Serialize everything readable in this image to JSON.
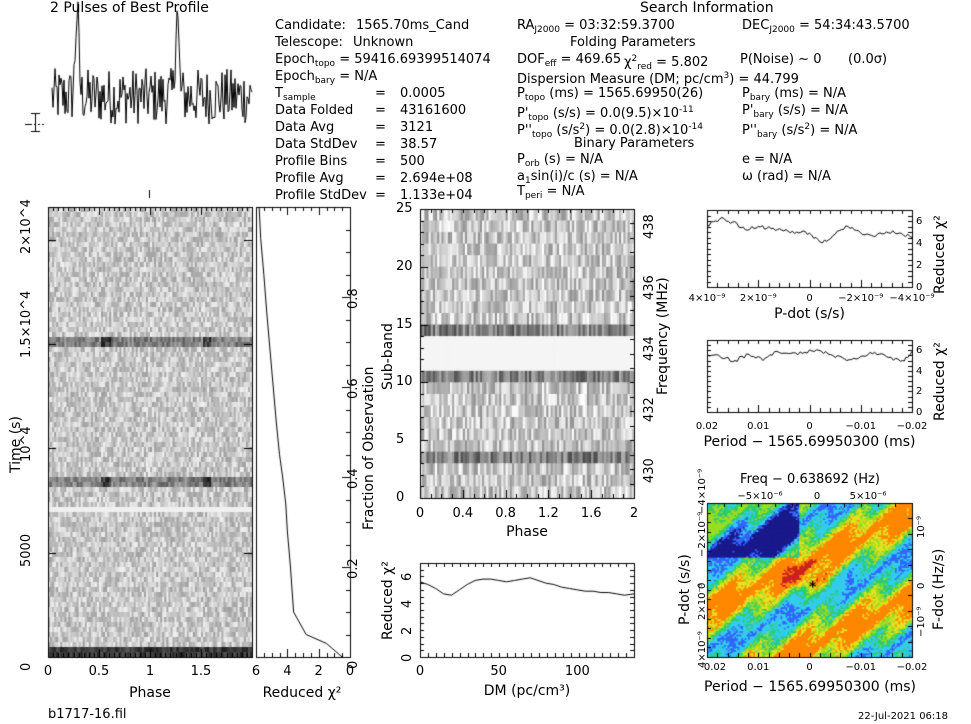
{
  "header": {
    "pulse_title": "2 Pulses of Best Profile",
    "search_title": "Search Information",
    "folding_title": "Folding Parameters",
    "binary_title": "Binary Parameters"
  },
  "candidate": {
    "candidate_label": "Candidate:",
    "candidate_value": "1565.70ms_Cand",
    "telescope_label": "Telescope:",
    "telescope_value": "Unknown",
    "epoch_topo": "Epoch",
    "epoch_topo_sub": "topo",
    "epoch_topo_value": "= 59416.69399514074",
    "epoch_bary": "Epoch",
    "epoch_bary_sub": "bary",
    "epoch_bary_value": "= N/A",
    "rows": [
      {
        "label": "T",
        "sub": "sample",
        "value": "0.0005"
      },
      {
        "label": "Data Folded",
        "sub": "",
        "value": "43161600"
      },
      {
        "label": "Data Avg",
        "sub": "",
        "value": "3121"
      },
      {
        "label": "Data StdDev",
        "sub": "",
        "value": "38.57"
      },
      {
        "label": "Profile Bins",
        "sub": "",
        "value": "500"
      },
      {
        "label": "Profile Avg",
        "sub": "",
        "value": "2.694e+08"
      },
      {
        "label": "Profile StdDev",
        "sub": "",
        "value": "1.133e+04"
      }
    ],
    "equals": "="
  },
  "search": {
    "ra_label": "RA",
    "ra_sub": "J2000",
    "ra_value": "= 03:32:59.3700",
    "dec_label": "DEC",
    "dec_sub": "J2000",
    "dec_value": "= 54:34:43.5700",
    "dof_label": "DOF",
    "dof_sub": "eff",
    "dof_value": "= 469.65",
    "chi_label": "χ",
    "chi_sup": "2",
    "chi_sub": "red",
    "chi_value": "= 5.802",
    "pnoise": "P(Noise) ~ 0",
    "sigma": "(0.0σ)",
    "dm_line": "Dispersion Measure (DM; pc/cm",
    "dm_sup": "3",
    "dm_tail": ") = 44.799",
    "ptopo_label": "P",
    "ptopo_sub": "topo",
    "ptopo_value": "(ms) = 1565.69950(26)",
    "pbary_label": "P",
    "pbary_sub": "bary",
    "pbary_value": "(ms) = N/A",
    "pdtopo_label": "P'",
    "pdtopo_sub": "topo",
    "pdtopo_value": "(s/s) = 0.0(9.5)×10",
    "pdtopo_exp": "-11",
    "pdbary_label": "P'",
    "pdbary_sub": "bary",
    "pdbary_value": "(s/s) = N/A",
    "pddtopo_label": "P''",
    "pddtopo_sub": "topo",
    "pddtopo_value": "(s/s",
    "pddtopo_sup": "2",
    "pddtopo_tail": ") = 0.0(2.8)×10",
    "pddtopo_exp": "-14",
    "pddbary_label": "P''",
    "pddbary_sub": "bary",
    "pddbary_value": "(s/s",
    "pddbary_sup": "2",
    "pddbary_tail": ") = N/A",
    "porb_label": "P",
    "porb_sub": "orb",
    "porb_value": "(s) = N/A",
    "e_value": "e = N/A",
    "a1_label": "a",
    "a1_sub": "1",
    "a1_value": "sin(i)/c (s) = N/A",
    "omega_value": "ω (rad) = N/A",
    "tperi_label": "T",
    "tperi_sub": "peri",
    "tperi_value": "= N/A"
  },
  "footer": {
    "filename": "b1717-16.fil",
    "date": "22-Jul-2021 06:18"
  },
  "colors": {
    "grey_dark": "#1a1a1a",
    "grey_light": "#f2f2f2",
    "cmap": [
      "#1a1a8c",
      "#3366ff",
      "#33ccee",
      "#2ecc71",
      "#99dd22",
      "#e8e020",
      "#ff8800",
      "#cc2222"
    ]
  },
  "chart_data": [
    {
      "type": "line",
      "name": "pulse_profile",
      "title": "2 Pulses of Best Profile",
      "xlabel": "",
      "ylabel": "",
      "x_range": [
        0,
        2
      ],
      "error_bar": true,
      "peaks_phase": [
        0.25,
        1.25
      ]
    },
    {
      "type": "heatmap",
      "name": "time_vs_phase",
      "xlabel": "Phase",
      "ylabel": "Time (s)",
      "x_ticks": [
        "0",
        "0.5",
        "1",
        "1.5"
      ],
      "y_ticks": [
        "0",
        "5000",
        "10^4",
        "1.5×10^4",
        "2×10^4"
      ],
      "y_tick_values": [
        0,
        5000,
        10000,
        15000,
        20000
      ],
      "x_range": [
        0,
        2
      ],
      "y_range": [
        0,
        21580
      ],
      "dark_rows_frac": [
        0.39,
        0.71
      ]
    },
    {
      "type": "line",
      "name": "reduced_chi2_vs_time",
      "xlabel": "Reduced χ²",
      "ylabel": "Fraction of Observation",
      "x_ticks": [
        "6",
        "4",
        "2",
        "0"
      ],
      "x_range": [
        6,
        0
      ],
      "y_ticks": [
        "0",
        "0.2",
        "0.4",
        "0.6",
        "0.8"
      ],
      "y_range": [
        0,
        1
      ],
      "x": [
        0.5,
        1.5,
        2.8,
        3.6,
        3.8,
        4.0,
        4.1,
        4.3,
        4.5,
        4.7,
        4.9,
        5.1,
        5.3,
        5.5,
        5.7,
        5.8
      ],
      "y": [
        0.0,
        0.03,
        0.05,
        0.1,
        0.2,
        0.28,
        0.34,
        0.4,
        0.45,
        0.52,
        0.6,
        0.68,
        0.76,
        0.85,
        0.93,
        1.0
      ]
    },
    {
      "type": "heatmap",
      "name": "subband_vs_phase",
      "xlabel": "Phase",
      "ylabel": "Sub-band",
      "ylabel_right": "Frequency (MHz)",
      "x_ticks": [
        "0",
        "0.4",
        "0.8",
        "1.2",
        "1.6",
        "2"
      ],
      "y_ticks": [
        "0",
        "5",
        "10",
        "15",
        "20",
        "25"
      ],
      "y_right_ticks": [
        "430",
        "432",
        "434",
        "436",
        "438"
      ],
      "x_range": [
        0,
        2
      ],
      "y_range": [
        0,
        25
      ],
      "freq_range": [
        429.1,
        438.6
      ],
      "masked_subbands": [
        11,
        12,
        13
      ],
      "dark_subbands": [
        3,
        10,
        14
      ]
    },
    {
      "type": "line",
      "name": "chi2_vs_dm",
      "xlabel": "DM (pc/cm³)",
      "ylabel": "Reduced χ²",
      "x_ticks": [
        "0",
        "50",
        "100"
      ],
      "y_ticks": [
        "0",
        "2",
        "4",
        "6"
      ],
      "x_range": [
        0,
        136
      ],
      "y_range": [
        0,
        7
      ],
      "x": [
        0,
        5,
        10,
        15,
        20,
        25,
        30,
        35,
        40,
        45,
        50,
        55,
        60,
        65,
        70,
        75,
        80,
        85,
        90,
        95,
        100,
        105,
        110,
        115,
        120,
        125,
        130,
        136
      ],
      "y": [
        5.6,
        5.4,
        5.1,
        4.7,
        4.6,
        5.0,
        5.4,
        5.7,
        5.8,
        5.8,
        5.7,
        5.6,
        5.7,
        5.8,
        5.9,
        5.7,
        5.5,
        5.4,
        5.2,
        5.1,
        5.0,
        4.9,
        4.9,
        4.8,
        4.8,
        4.7,
        4.6,
        4.7
      ]
    },
    {
      "type": "line",
      "name": "chi2_vs_pdot",
      "xlabel": "P-dot (s/s)",
      "ylabel": "Reduced χ²",
      "x_ticks": [
        "4×10⁻⁹",
        "2×10⁻⁹",
        "0",
        "−2×10⁻⁹",
        "−4×10⁻⁹"
      ],
      "y_ticks": [
        "0",
        "2",
        "4",
        "6"
      ],
      "x_range": [
        4e-09,
        -4e-09
      ],
      "y_range": [
        0,
        7
      ],
      "x": [
        4e-09,
        3.5e-09,
        3e-09,
        2.5e-09,
        2e-09,
        1.5e-09,
        1e-09,
        5e-10,
        0,
        -5e-10,
        -1e-09,
        -1.5e-09,
        -2e-09,
        -2.5e-09,
        -3e-09,
        -3.5e-09,
        -4e-09
      ],
      "y": [
        5.6,
        6.2,
        5.9,
        5.2,
        5.5,
        5.3,
        5.1,
        5.0,
        4.9,
        4.0,
        4.8,
        5.5,
        4.9,
        4.6,
        5.0,
        4.9,
        4.5
      ]
    },
    {
      "type": "line",
      "name": "chi2_vs_period",
      "xlabel": "Period − 1565.69950300 (ms)",
      "ylabel": "Reduced χ²",
      "x_ticks": [
        "0.02",
        "0.01",
        "0",
        "−0.01",
        "−0.02"
      ],
      "y_ticks": [
        "0",
        "2",
        "4",
        "6"
      ],
      "x_range": [
        0.022,
        -0.022
      ],
      "y_range": [
        0,
        7
      ],
      "x": [
        0.022,
        0.019,
        0.016,
        0.013,
        0.01,
        0.007,
        0.004,
        0.001,
        -0.002,
        -0.005,
        -0.008,
        -0.011,
        -0.014,
        -0.017,
        -0.02,
        -0.022
      ],
      "y": [
        5.6,
        5.3,
        5.0,
        5.6,
        5.0,
        5.9,
        5.7,
        5.8,
        6.0,
        5.5,
        5.0,
        5.4,
        5.8,
        5.3,
        5.0,
        5.9
      ]
    },
    {
      "type": "heatmap",
      "name": "pdot_vs_period",
      "title": "Freq − 0.638692 (Hz)",
      "xlabel": "Period − 1565.69950300 (ms)",
      "ylabel": "P-dot (s/s)",
      "ylabel_right": "F-dot (Hz/s)",
      "x_ticks": [
        "0.02",
        "0.01",
        "0",
        "−0.01",
        "−0.02"
      ],
      "x_top_ticks": [
        "−5×10⁻⁶",
        "0",
        "5×10⁻⁶"
      ],
      "y_ticks": [
        "4×10⁻⁹",
        "2×10⁻⁹",
        "0",
        "−2×10⁻⁹",
        "−4×10⁻⁹"
      ],
      "y_right_ticks": [
        "10⁻⁹",
        "0",
        "−10⁻⁹"
      ],
      "best_marker": "*"
    }
  ]
}
